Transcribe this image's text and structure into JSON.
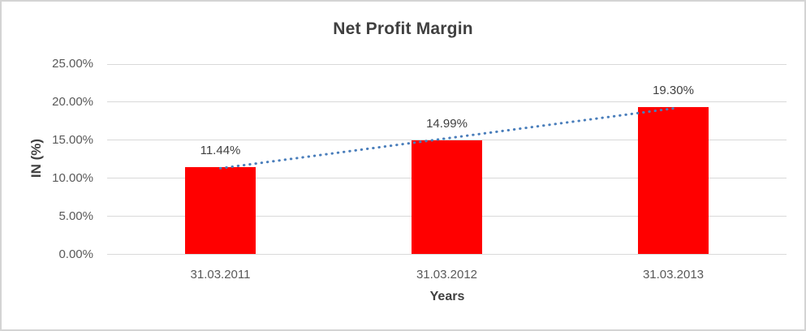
{
  "frame": {
    "border_color": "#d4d4d4",
    "background": "#ffffff"
  },
  "chart_data": {
    "type": "bar",
    "title": "Net Profit Margin",
    "xlabel": "Years",
    "ylabel": "IN (%)",
    "categories": [
      "31.03.2011",
      "31.03.2012",
      "31.03.2013"
    ],
    "values": [
      11.44,
      14.99,
      19.3
    ],
    "data_labels": [
      "11.44%",
      "14.99%",
      "19.30%"
    ],
    "ylim": [
      0,
      25
    ],
    "ytick_labels": [
      "0.00%",
      "5.00%",
      "10.00%",
      "15.00%",
      "20.00%",
      "25.00%"
    ],
    "grid": true,
    "legend": "none",
    "trendline": {
      "type": "linear",
      "style": "dotted",
      "color": "#4a7ebb"
    },
    "colors": {
      "bar": "#ff0000",
      "gridline": "#d9d9d9",
      "axis_line": "#d9d9d9",
      "title_text": "#404040",
      "tick_text": "#595959",
      "label_text": "#404040"
    }
  }
}
